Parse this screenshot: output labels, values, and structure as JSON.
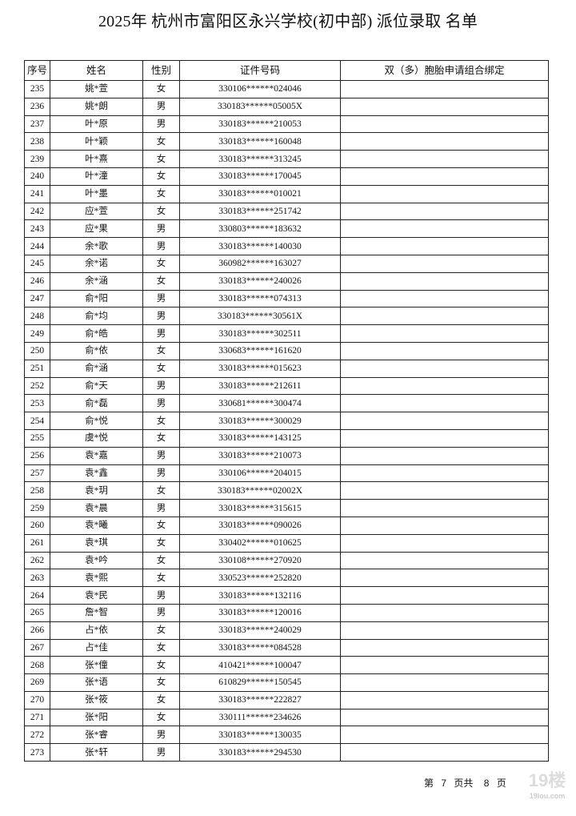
{
  "title": "2025年 杭州市富阳区永兴学校(初中部) 派位录取 名单",
  "columns": [
    "序号",
    "姓名",
    "性别",
    "证件号码",
    "双（多）胞胎申请组合绑定"
  ],
  "rows": [
    [
      "235",
      "姚*萱",
      "女",
      "330106******024046",
      ""
    ],
    [
      "236",
      "姚*朗",
      "男",
      "330183******05005X",
      ""
    ],
    [
      "237",
      "叶*原",
      "男",
      "330183******210053",
      ""
    ],
    [
      "238",
      "叶*颖",
      "女",
      "330183******160048",
      ""
    ],
    [
      "239",
      "叶*熹",
      "女",
      "330183******313245",
      ""
    ],
    [
      "240",
      "叶*潼",
      "女",
      "330183******170045",
      ""
    ],
    [
      "241",
      "叶*墨",
      "女",
      "330183******010021",
      ""
    ],
    [
      "242",
      "应*萱",
      "女",
      "330183******251742",
      ""
    ],
    [
      "243",
      "应*果",
      "男",
      "330803******183632",
      ""
    ],
    [
      "244",
      "余*歌",
      "男",
      "330183******140030",
      ""
    ],
    [
      "245",
      "余*诺",
      "女",
      "360982******163027",
      ""
    ],
    [
      "246",
      "余*涵",
      "女",
      "330183******240026",
      ""
    ],
    [
      "247",
      "俞*阳",
      "男",
      "330183******074313",
      ""
    ],
    [
      "248",
      "俞*均",
      "男",
      "330183******30561X",
      ""
    ],
    [
      "249",
      "俞*皓",
      "男",
      "330183******302511",
      ""
    ],
    [
      "250",
      "俞*依",
      "女",
      "330683******161620",
      ""
    ],
    [
      "251",
      "俞*涵",
      "女",
      "330183******015623",
      ""
    ],
    [
      "252",
      "俞*天",
      "男",
      "330183******212611",
      ""
    ],
    [
      "253",
      "俞*磊",
      "男",
      "330681******300474",
      ""
    ],
    [
      "254",
      "俞*悦",
      "女",
      "330183******300029",
      ""
    ],
    [
      "255",
      "虞*悦",
      "女",
      "330183******143125",
      ""
    ],
    [
      "256",
      "袁*嘉",
      "男",
      "330183******210073",
      ""
    ],
    [
      "257",
      "袁*鑫",
      "男",
      "330106******204015",
      ""
    ],
    [
      "258",
      "袁*玥",
      "女",
      "330183******02002X",
      ""
    ],
    [
      "259",
      "袁*晨",
      "男",
      "330183******315615",
      ""
    ],
    [
      "260",
      "袁*曦",
      "女",
      "330183******090026",
      ""
    ],
    [
      "261",
      "袁*琪",
      "女",
      "330402******010625",
      ""
    ],
    [
      "262",
      "袁*吟",
      "女",
      "330108******270920",
      ""
    ],
    [
      "263",
      "袁*熙",
      "女",
      "330523******252820",
      ""
    ],
    [
      "264",
      "袁*民",
      "男",
      "330183******132116",
      ""
    ],
    [
      "265",
      "詹*智",
      "男",
      "330183******120016",
      ""
    ],
    [
      "266",
      "占*依",
      "女",
      "330183******240029",
      ""
    ],
    [
      "267",
      "占*佳",
      "女",
      "330183******084528",
      ""
    ],
    [
      "268",
      "张*僮",
      "女",
      "410421******100047",
      ""
    ],
    [
      "269",
      "张*语",
      "女",
      "610829******150545",
      ""
    ],
    [
      "270",
      "张*筱",
      "女",
      "330183******222827",
      ""
    ],
    [
      "271",
      "张*阳",
      "女",
      "330111******234626",
      ""
    ],
    [
      "272",
      "张*睿",
      "男",
      "330183******130035",
      ""
    ],
    [
      "273",
      "张*轩",
      "男",
      "330183******294530",
      ""
    ]
  ],
  "footer": {
    "prefix": "第",
    "page": "7",
    "middle": "页共",
    "total": "8",
    "suffix": "页"
  },
  "watermark": {
    "text": "19楼",
    "sub": "19lou.com"
  }
}
